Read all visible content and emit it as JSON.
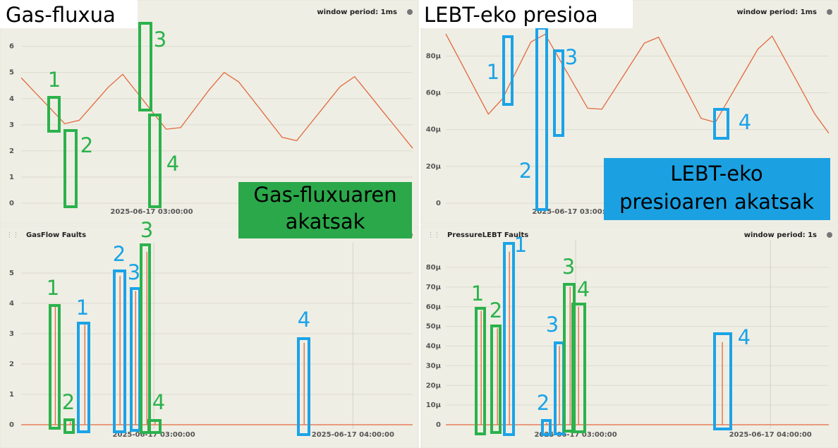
{
  "chart_data": [
    {
      "type": "line",
      "title": "Gas-fluxua",
      "window": "window period: 1ms",
      "color": "#e2693f",
      "grid": true,
      "categories": [
        null,
        null,
        null,
        null,
        null,
        null,
        null,
        null,
        null,
        "2025-06-17 03:00:00",
        null,
        null,
        null,
        null,
        null,
        null,
        null,
        null,
        null,
        null,
        null,
        null,
        null,
        null,
        null,
        null,
        null,
        null
      ],
      "values": [
        4.8,
        4.21,
        3.63,
        3.04,
        3.17,
        3.8,
        4.43,
        4.93,
        4.23,
        3.53,
        2.83,
        2.89,
        3.63,
        4.36,
        5.0,
        4.64,
        3.94,
        3.23,
        2.52,
        2.39,
        3.08,
        3.77,
        4.46,
        4.84,
        4.16,
        3.47,
        2.79,
        2.1
      ],
      "ylim": [
        0,
        6.8
      ],
      "yticks": [
        0,
        1,
        2,
        3,
        4,
        5,
        6
      ],
      "annotations": [
        {
          "label": "1",
          "color": "#2bb24c"
        },
        {
          "label": "2",
          "color": "#2bb24c"
        },
        {
          "label": "3",
          "color": "#2bb24c"
        },
        {
          "label": "4",
          "color": "#2bb24c"
        }
      ]
    },
    {
      "type": "line",
      "title": "LEBT-eko presioa",
      "window": "window period: 1ms",
      "color": "#e2693f",
      "grid": true,
      "categories": [
        null,
        null,
        null,
        null,
        null,
        null,
        null,
        null,
        null,
        "2025-06-17 03:00:00",
        null,
        null,
        null,
        null,
        null,
        null,
        null,
        null,
        null,
        null,
        null,
        null,
        null,
        null,
        null,
        null,
        null,
        null
      ],
      "values": [
        9.2e-05,
        7.75e-05,
        6.29e-05,
        4.84e-05,
        5.68e-05,
        7.22e-05,
        8.76e-05,
        9.18e-05,
        7.84e-05,
        6.5e-05,
        5.16e-05,
        5.11e-05,
        6.3e-05,
        7.5e-05,
        8.7e-05,
        9.02e-05,
        7.55e-05,
        6.08e-05,
        4.61e-05,
        4.39e-05,
        5.72e-05,
        7.05e-05,
        8.37e-05,
        9.08e-05,
        7.68e-05,
        6.27e-05,
        4.86e-05,
        3.8e-05
      ],
      "ylim": [
        0,
        9.7e-05
      ],
      "yticks": [
        0,
        {
          "value": 2e-05,
          "label": "20μ"
        },
        {
          "value": 4e-05,
          "label": "40μ"
        },
        {
          "value": 6e-05,
          "label": "60μ"
        },
        {
          "value": 8e-05,
          "label": "80μ"
        }
      ],
      "annotations": [
        {
          "label": "1",
          "color": "#1aa3e8"
        },
        {
          "label": "2",
          "color": "#1aa3e8"
        },
        {
          "label": "3",
          "color": "#1aa3e8"
        },
        {
          "label": "4",
          "color": "#1aa3e8"
        }
      ]
    },
    {
      "type": "line",
      "title": "GasFlow Faults",
      "color": "#e2693f",
      "grid": true,
      "x": [
        -40,
        -29.7,
        -29.7,
        -29.7,
        -25.2,
        -25.2,
        -25.2,
        -20.8,
        -20.8,
        -20.8,
        -10.2,
        -10.2,
        -10.2,
        -5.5,
        -5.5,
        -5.5,
        -2.1,
        -2.1,
        -2.1,
        0.4,
        0.4,
        0.4,
        45.3,
        45.3,
        45.3,
        78
      ],
      "values": [
        0,
        0,
        3.9,
        0,
        0,
        0.1,
        0,
        0,
        3.3,
        0,
        0,
        4.9,
        0,
        0,
        4.4,
        0,
        0,
        5.7,
        0,
        0,
        0.1,
        0,
        0,
        2.7,
        0,
        0
      ],
      "xlim": [
        -40,
        78
      ],
      "xticks": [
        {
          "value": 0,
          "label": "2025-06-17 03:00:00"
        },
        {
          "value": 60,
          "label": "2025-06-17 04:00:00"
        }
      ],
      "ylim": [
        0,
        6
      ],
      "yticks": [
        0,
        1,
        2,
        3,
        4,
        5
      ],
      "annotations": [
        {
          "label": "1",
          "color": "#2bb24c"
        },
        {
          "label": "1",
          "color": "#1aa3e8"
        },
        {
          "label": "2",
          "color": "#2bb24c"
        },
        {
          "label": "2",
          "color": "#1aa3e8"
        },
        {
          "label": "3",
          "color": "#1aa3e8"
        },
        {
          "label": "3",
          "color": "#2bb24c"
        },
        {
          "label": "4",
          "color": "#2bb24c"
        },
        {
          "label": "4",
          "color": "#1aa3e8"
        }
      ]
    },
    {
      "type": "line",
      "title": "PressureLEBT Faults",
      "window": "window period: 1s",
      "color": "#e2693f",
      "grid": true,
      "x": [
        -40,
        -29.1,
        -29.1,
        -29.1,
        -24.1,
        -24.1,
        -24.1,
        -20.4,
        -20.4,
        -20.4,
        -8.9,
        -8.9,
        -8.9,
        -5.0,
        -5.0,
        -5.0,
        -1.7,
        -1.7,
        -1.7,
        0.9,
        0.9,
        0.9,
        45.2,
        45.2,
        45.2,
        78
      ],
      "values": [
        0,
        0,
        5.8e-05,
        0,
        0,
        4.9e-05,
        0,
        0,
        8.8e-05,
        0,
        0,
        1e-06,
        0,
        0,
        4e-05,
        0,
        0,
        7e-05,
        0,
        0,
        6e-05,
        0,
        0,
        4.2e-05,
        0,
        0
      ],
      "xlim": [
        -40,
        78
      ],
      "xticks": [
        {
          "value": 0,
          "label": "2025-06-17 03:00:00"
        },
        {
          "value": 60,
          "label": "2025-06-17 04:00:00"
        }
      ],
      "ylim": [
        0,
        9.4e-05
      ],
      "yticks": [
        0,
        {
          "value": 1e-05,
          "label": "10μ"
        },
        {
          "value": 2e-05,
          "label": "20μ"
        },
        {
          "value": 3e-05,
          "label": "30μ"
        },
        {
          "value": 4e-05,
          "label": "40μ"
        },
        {
          "value": 5e-05,
          "label": "50μ"
        },
        {
          "value": 6e-05,
          "label": "60μ"
        },
        {
          "value": 7e-05,
          "label": "70μ"
        },
        {
          "value": 8e-05,
          "label": "80μ"
        }
      ],
      "annotations": [
        {
          "label": "1",
          "color": "#2bb24c"
        },
        {
          "label": "2",
          "color": "#2bb24c"
        },
        {
          "label": "1",
          "color": "#1aa3e8"
        },
        {
          "label": "2",
          "color": "#1aa3e8"
        },
        {
          "label": "3",
          "color": "#1aa3e8"
        },
        {
          "label": "3",
          "color": "#2bb24c"
        },
        {
          "label": "4",
          "color": "#2bb24c"
        },
        {
          "label": "4",
          "color": "#1aa3e8"
        }
      ]
    }
  ],
  "captions": [
    [
      "Gas-fluxuaren",
      "akatsak"
    ],
    [
      "LEBT-eko",
      "presioaren akatsak"
    ]
  ]
}
